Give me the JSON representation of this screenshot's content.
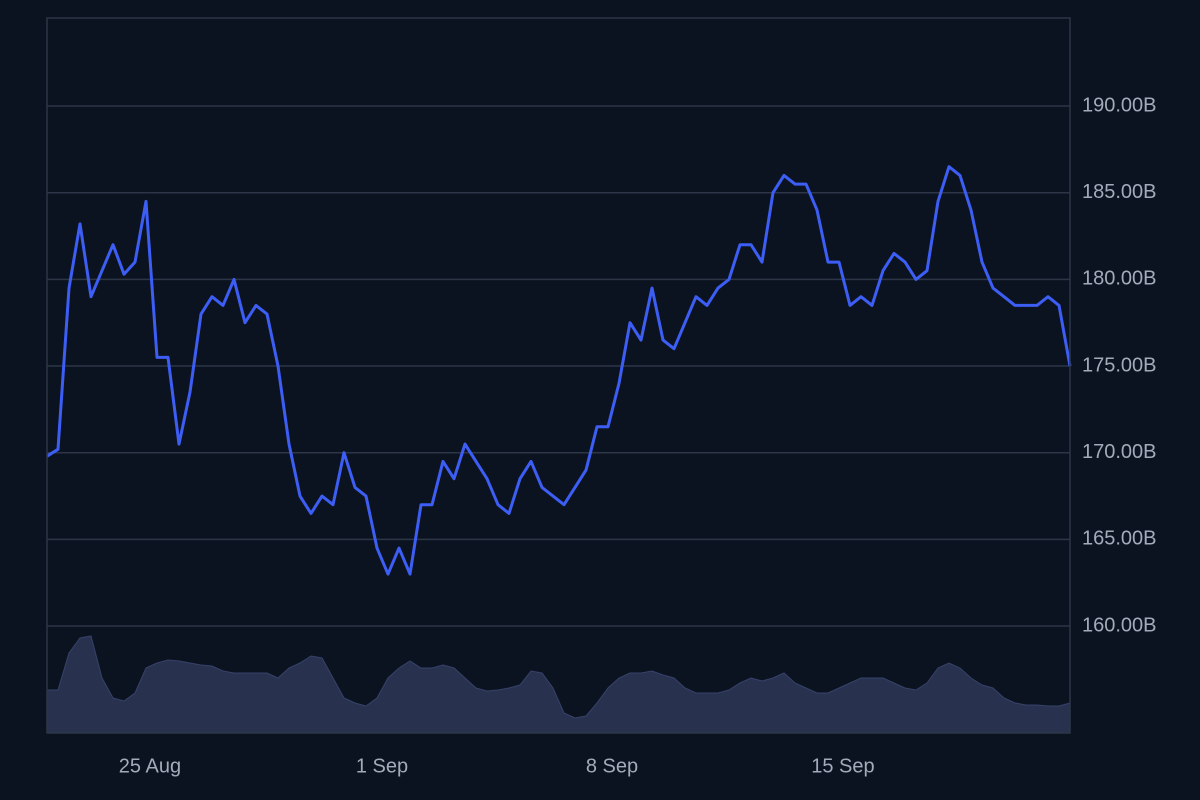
{
  "chart_data": {
    "type": "line",
    "xlim": [
      0,
      93
    ],
    "xticks": [
      {
        "value": 9.36,
        "label": "25 Aug"
      },
      {
        "value": 30.45,
        "label": "1 Sep"
      },
      {
        "value": 51.36,
        "label": "8 Sep"
      },
      {
        "value": 72.36,
        "label": "15 Sep"
      }
    ],
    "ylim": [
      153.83,
      195.08
    ],
    "yticks": [
      {
        "value": 160,
        "label": "160.00B"
      },
      {
        "value": 165,
        "label": "165.00B"
      },
      {
        "value": 170,
        "label": "170.00B"
      },
      {
        "value": 175,
        "label": "175.00B"
      },
      {
        "value": 180,
        "label": "180.00B"
      },
      {
        "value": 185,
        "label": "185.00B"
      },
      {
        "value": 190,
        "label": "190.00B"
      }
    ],
    "y2lim": [
      0,
      715
    ],
    "grid": true,
    "series": [
      {
        "color": "#3d5ef5",
        "values": [
          169.8,
          170.2,
          179.5,
          183.2,
          179.0,
          180.5,
          182.0,
          180.3,
          181.0,
          184.5,
          175.5,
          175.5,
          170.5,
          173.5,
          178.0,
          179.0,
          178.5,
          180.0,
          177.5,
          178.5,
          178.0,
          175.0,
          170.5,
          167.5,
          166.5,
          167.5,
          167.0,
          170.0,
          168.0,
          167.5,
          164.5,
          163.0,
          164.5,
          163.0,
          167.0,
          167.0,
          169.5,
          168.5,
          170.5,
          169.5,
          168.5,
          167.0,
          166.5,
          168.5,
          169.5,
          168.0,
          167.5,
          167.0,
          168.0,
          169.0,
          171.5,
          171.5,
          174.0,
          177.5,
          176.5,
          179.5,
          176.5,
          176.0,
          177.5,
          179.0,
          178.5,
          179.5,
          180.0,
          182.0,
          182.0,
          181.0,
          185.0,
          186.0,
          185.5,
          185.5,
          184.0,
          181.0,
          181.0,
          178.5,
          179.0,
          178.5,
          180.5,
          181.5,
          181.0,
          180.0,
          180.5,
          184.5,
          186.5,
          186.0,
          184.0,
          181.0,
          179.5,
          179.0,
          178.5,
          178.5,
          178.5,
          179.0,
          178.5,
          175.0
        ]
      },
      {
        "color": "#28324f",
        "axis": "y2",
        "type": "area",
        "values": [
          43,
          43,
          80,
          95,
          97,
          55,
          35,
          32,
          40,
          65,
          70,
          73,
          72,
          70,
          68,
          67,
          62,
          60,
          60,
          60,
          60,
          55,
          65,
          70,
          77,
          75,
          55,
          35,
          30,
          27,
          35,
          55,
          65,
          72,
          65,
          65,
          68,
          65,
          55,
          45,
          42,
          43,
          45,
          48,
          62,
          60,
          45,
          20,
          15,
          17,
          30,
          45,
          55,
          60,
          60,
          62,
          58,
          55,
          45,
          40,
          40,
          40,
          43,
          50,
          55,
          52,
          55,
          60,
          50,
          45,
          40,
          40,
          45,
          50,
          55,
          55,
          55,
          50,
          45,
          43,
          50,
          65,
          70,
          65,
          55,
          48,
          45,
          35,
          30,
          28,
          28,
          27,
          27,
          30
        ]
      }
    ]
  }
}
